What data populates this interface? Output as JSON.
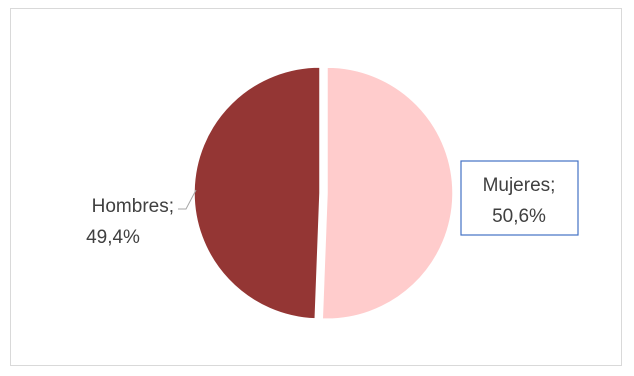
{
  "chart_data": {
    "type": "pie",
    "title": "",
    "slices": [
      {
        "name": "Mujeres",
        "value": 50.6,
        "label_line1": "Mujeres;",
        "label_line2": "50,6%",
        "color": "#ffcccc",
        "exploded": true,
        "label_boxed": true,
        "label_box_color": "#4472c4"
      },
      {
        "name": "Hombres",
        "value": 49.4,
        "label_line1": "Hombres;",
        "label_line2": "49,4%",
        "color": "#943634",
        "exploded": false,
        "label_boxed": false
      }
    ],
    "legend": "none",
    "start_angle": "12 o'clock, clockwise"
  }
}
